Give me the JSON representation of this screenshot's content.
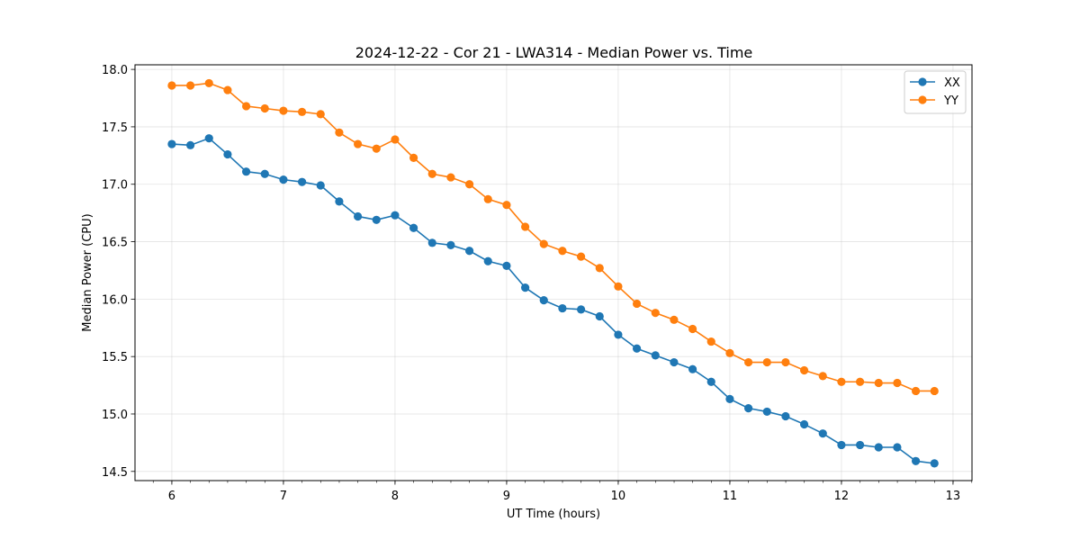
{
  "chart_data": {
    "type": "line",
    "title": "2024-12-22 - Cor 21 - LWA314 - Median Power vs. Time",
    "xlabel": "UT Time (hours)",
    "ylabel": "Median Power (CPU)",
    "xlim": [
      5.67,
      13.17
    ],
    "ylim": [
      14.42,
      18.04
    ],
    "xticks": [
      6,
      7,
      8,
      9,
      10,
      11,
      12,
      13
    ],
    "xtick_labels": [
      "6",
      "7",
      "8",
      "9",
      "10",
      "11",
      "12",
      "13"
    ],
    "yticks": [
      14.5,
      15.0,
      15.5,
      16.0,
      16.5,
      17.0,
      17.5,
      18.0
    ],
    "ytick_labels": [
      "14.5",
      "15.0",
      "15.5",
      "16.0",
      "16.5",
      "17.0",
      "17.5",
      "18.0"
    ],
    "x_minor_step": 0.1667,
    "grid": true,
    "legend_position": "top-right",
    "x": [
      6.0,
      6.1667,
      6.3333,
      6.5,
      6.6667,
      6.8333,
      7.0,
      7.1667,
      7.3333,
      7.5,
      7.6667,
      7.8333,
      8.0,
      8.1667,
      8.3333,
      8.5,
      8.6667,
      8.8333,
      9.0,
      9.1667,
      9.3333,
      9.5,
      9.6667,
      9.8333,
      10.0,
      10.1667,
      10.3333,
      10.5,
      10.6667,
      10.8333,
      11.0,
      11.1667,
      11.3333,
      11.5,
      11.6667,
      11.8333,
      12.0,
      12.1667,
      12.3333,
      12.5,
      12.6667,
      12.8333
    ],
    "series": [
      {
        "name": "XX",
        "color": "#1f77b4",
        "values": [
          17.35,
          17.34,
          17.4,
          17.26,
          17.11,
          17.09,
          17.04,
          17.02,
          16.99,
          16.85,
          16.72,
          16.69,
          16.73,
          16.62,
          16.49,
          16.47,
          16.42,
          16.33,
          16.29,
          16.1,
          15.99,
          15.92,
          15.91,
          15.85,
          15.69,
          15.57,
          15.51,
          15.45,
          15.39,
          15.28,
          15.13,
          15.05,
          15.02,
          14.98,
          14.91,
          14.83,
          14.73,
          14.73,
          14.71,
          14.71,
          14.59,
          14.57
        ]
      },
      {
        "name": "YY",
        "color": "#ff7f0e",
        "values": [
          17.86,
          17.86,
          17.88,
          17.82,
          17.68,
          17.66,
          17.64,
          17.63,
          17.61,
          17.45,
          17.35,
          17.31,
          17.39,
          17.23,
          17.09,
          17.06,
          17.0,
          16.87,
          16.82,
          16.63,
          16.48,
          16.42,
          16.37,
          16.27,
          16.11,
          15.96,
          15.88,
          15.82,
          15.74,
          15.63,
          15.53,
          15.45,
          15.45,
          15.45,
          15.38,
          15.33,
          15.28,
          15.28,
          15.27,
          15.27,
          15.2,
          15.2
        ]
      }
    ]
  }
}
